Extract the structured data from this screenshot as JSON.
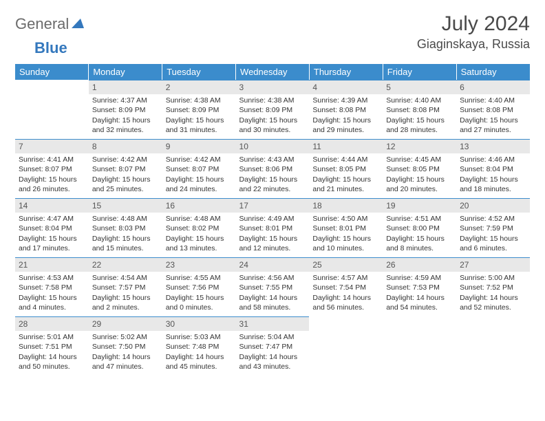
{
  "logo": {
    "text1": "General",
    "text2": "Blue"
  },
  "title": "July 2024",
  "location": "Giaginskaya, Russia",
  "colors": {
    "header_bg": "#3b8ccc",
    "header_text": "#ffffff",
    "daynum_bg": "#e8e8e8",
    "border": "#3b8ccc",
    "logo_gray": "#6b6b6b",
    "logo_blue": "#3478bd"
  },
  "weekdays": [
    "Sunday",
    "Monday",
    "Tuesday",
    "Wednesday",
    "Thursday",
    "Friday",
    "Saturday"
  ],
  "weeks": [
    [
      null,
      {
        "n": "1",
        "sr": "Sunrise: 4:37 AM",
        "ss": "Sunset: 8:09 PM",
        "dl": "Daylight: 15 hours and 32 minutes."
      },
      {
        "n": "2",
        "sr": "Sunrise: 4:38 AM",
        "ss": "Sunset: 8:09 PM",
        "dl": "Daylight: 15 hours and 31 minutes."
      },
      {
        "n": "3",
        "sr": "Sunrise: 4:38 AM",
        "ss": "Sunset: 8:09 PM",
        "dl": "Daylight: 15 hours and 30 minutes."
      },
      {
        "n": "4",
        "sr": "Sunrise: 4:39 AM",
        "ss": "Sunset: 8:08 PM",
        "dl": "Daylight: 15 hours and 29 minutes."
      },
      {
        "n": "5",
        "sr": "Sunrise: 4:40 AM",
        "ss": "Sunset: 8:08 PM",
        "dl": "Daylight: 15 hours and 28 minutes."
      },
      {
        "n": "6",
        "sr": "Sunrise: 4:40 AM",
        "ss": "Sunset: 8:08 PM",
        "dl": "Daylight: 15 hours and 27 minutes."
      }
    ],
    [
      {
        "n": "7",
        "sr": "Sunrise: 4:41 AM",
        "ss": "Sunset: 8:07 PM",
        "dl": "Daylight: 15 hours and 26 minutes."
      },
      {
        "n": "8",
        "sr": "Sunrise: 4:42 AM",
        "ss": "Sunset: 8:07 PM",
        "dl": "Daylight: 15 hours and 25 minutes."
      },
      {
        "n": "9",
        "sr": "Sunrise: 4:42 AM",
        "ss": "Sunset: 8:07 PM",
        "dl": "Daylight: 15 hours and 24 minutes."
      },
      {
        "n": "10",
        "sr": "Sunrise: 4:43 AM",
        "ss": "Sunset: 8:06 PM",
        "dl": "Daylight: 15 hours and 22 minutes."
      },
      {
        "n": "11",
        "sr": "Sunrise: 4:44 AM",
        "ss": "Sunset: 8:05 PM",
        "dl": "Daylight: 15 hours and 21 minutes."
      },
      {
        "n": "12",
        "sr": "Sunrise: 4:45 AM",
        "ss": "Sunset: 8:05 PM",
        "dl": "Daylight: 15 hours and 20 minutes."
      },
      {
        "n": "13",
        "sr": "Sunrise: 4:46 AM",
        "ss": "Sunset: 8:04 PM",
        "dl": "Daylight: 15 hours and 18 minutes."
      }
    ],
    [
      {
        "n": "14",
        "sr": "Sunrise: 4:47 AM",
        "ss": "Sunset: 8:04 PM",
        "dl": "Daylight: 15 hours and 17 minutes."
      },
      {
        "n": "15",
        "sr": "Sunrise: 4:48 AM",
        "ss": "Sunset: 8:03 PM",
        "dl": "Daylight: 15 hours and 15 minutes."
      },
      {
        "n": "16",
        "sr": "Sunrise: 4:48 AM",
        "ss": "Sunset: 8:02 PM",
        "dl": "Daylight: 15 hours and 13 minutes."
      },
      {
        "n": "17",
        "sr": "Sunrise: 4:49 AM",
        "ss": "Sunset: 8:01 PM",
        "dl": "Daylight: 15 hours and 12 minutes."
      },
      {
        "n": "18",
        "sr": "Sunrise: 4:50 AM",
        "ss": "Sunset: 8:01 PM",
        "dl": "Daylight: 15 hours and 10 minutes."
      },
      {
        "n": "19",
        "sr": "Sunrise: 4:51 AM",
        "ss": "Sunset: 8:00 PM",
        "dl": "Daylight: 15 hours and 8 minutes."
      },
      {
        "n": "20",
        "sr": "Sunrise: 4:52 AM",
        "ss": "Sunset: 7:59 PM",
        "dl": "Daylight: 15 hours and 6 minutes."
      }
    ],
    [
      {
        "n": "21",
        "sr": "Sunrise: 4:53 AM",
        "ss": "Sunset: 7:58 PM",
        "dl": "Daylight: 15 hours and 4 minutes."
      },
      {
        "n": "22",
        "sr": "Sunrise: 4:54 AM",
        "ss": "Sunset: 7:57 PM",
        "dl": "Daylight: 15 hours and 2 minutes."
      },
      {
        "n": "23",
        "sr": "Sunrise: 4:55 AM",
        "ss": "Sunset: 7:56 PM",
        "dl": "Daylight: 15 hours and 0 minutes."
      },
      {
        "n": "24",
        "sr": "Sunrise: 4:56 AM",
        "ss": "Sunset: 7:55 PM",
        "dl": "Daylight: 14 hours and 58 minutes."
      },
      {
        "n": "25",
        "sr": "Sunrise: 4:57 AM",
        "ss": "Sunset: 7:54 PM",
        "dl": "Daylight: 14 hours and 56 minutes."
      },
      {
        "n": "26",
        "sr": "Sunrise: 4:59 AM",
        "ss": "Sunset: 7:53 PM",
        "dl": "Daylight: 14 hours and 54 minutes."
      },
      {
        "n": "27",
        "sr": "Sunrise: 5:00 AM",
        "ss": "Sunset: 7:52 PM",
        "dl": "Daylight: 14 hours and 52 minutes."
      }
    ],
    [
      {
        "n": "28",
        "sr": "Sunrise: 5:01 AM",
        "ss": "Sunset: 7:51 PM",
        "dl": "Daylight: 14 hours and 50 minutes."
      },
      {
        "n": "29",
        "sr": "Sunrise: 5:02 AM",
        "ss": "Sunset: 7:50 PM",
        "dl": "Daylight: 14 hours and 47 minutes."
      },
      {
        "n": "30",
        "sr": "Sunrise: 5:03 AM",
        "ss": "Sunset: 7:48 PM",
        "dl": "Daylight: 14 hours and 45 minutes."
      },
      {
        "n": "31",
        "sr": "Sunrise: 5:04 AM",
        "ss": "Sunset: 7:47 PM",
        "dl": "Daylight: 14 hours and 43 minutes."
      },
      null,
      null,
      null
    ]
  ]
}
